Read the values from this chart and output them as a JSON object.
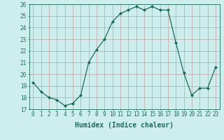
{
  "xlabel": "Humidex (Indice chaleur)",
  "x": [
    0,
    1,
    2,
    3,
    4,
    5,
    6,
    7,
    8,
    9,
    10,
    11,
    12,
    13,
    14,
    15,
    16,
    17,
    18,
    19,
    20,
    21,
    22,
    23
  ],
  "y": [
    19.3,
    18.5,
    18.0,
    17.8,
    17.3,
    17.5,
    18.2,
    21.0,
    22.1,
    23.0,
    24.5,
    25.2,
    25.5,
    25.8,
    25.5,
    25.8,
    25.5,
    25.5,
    22.7,
    20.1,
    18.2,
    18.8,
    18.8,
    20.6
  ],
  "ylim": [
    17,
    26
  ],
  "yticks": [
    17,
    18,
    19,
    20,
    21,
    22,
    23,
    24,
    25,
    26
  ],
  "line_color": "#1a6b5a",
  "marker": "D",
  "marker_size": 2,
  "bg_color": "#ceeeed",
  "grid_color": "#c0aeae",
  "axis_color": "#1a6b5a",
  "label_fontsize": 7,
  "tick_fontsize": 5.5
}
